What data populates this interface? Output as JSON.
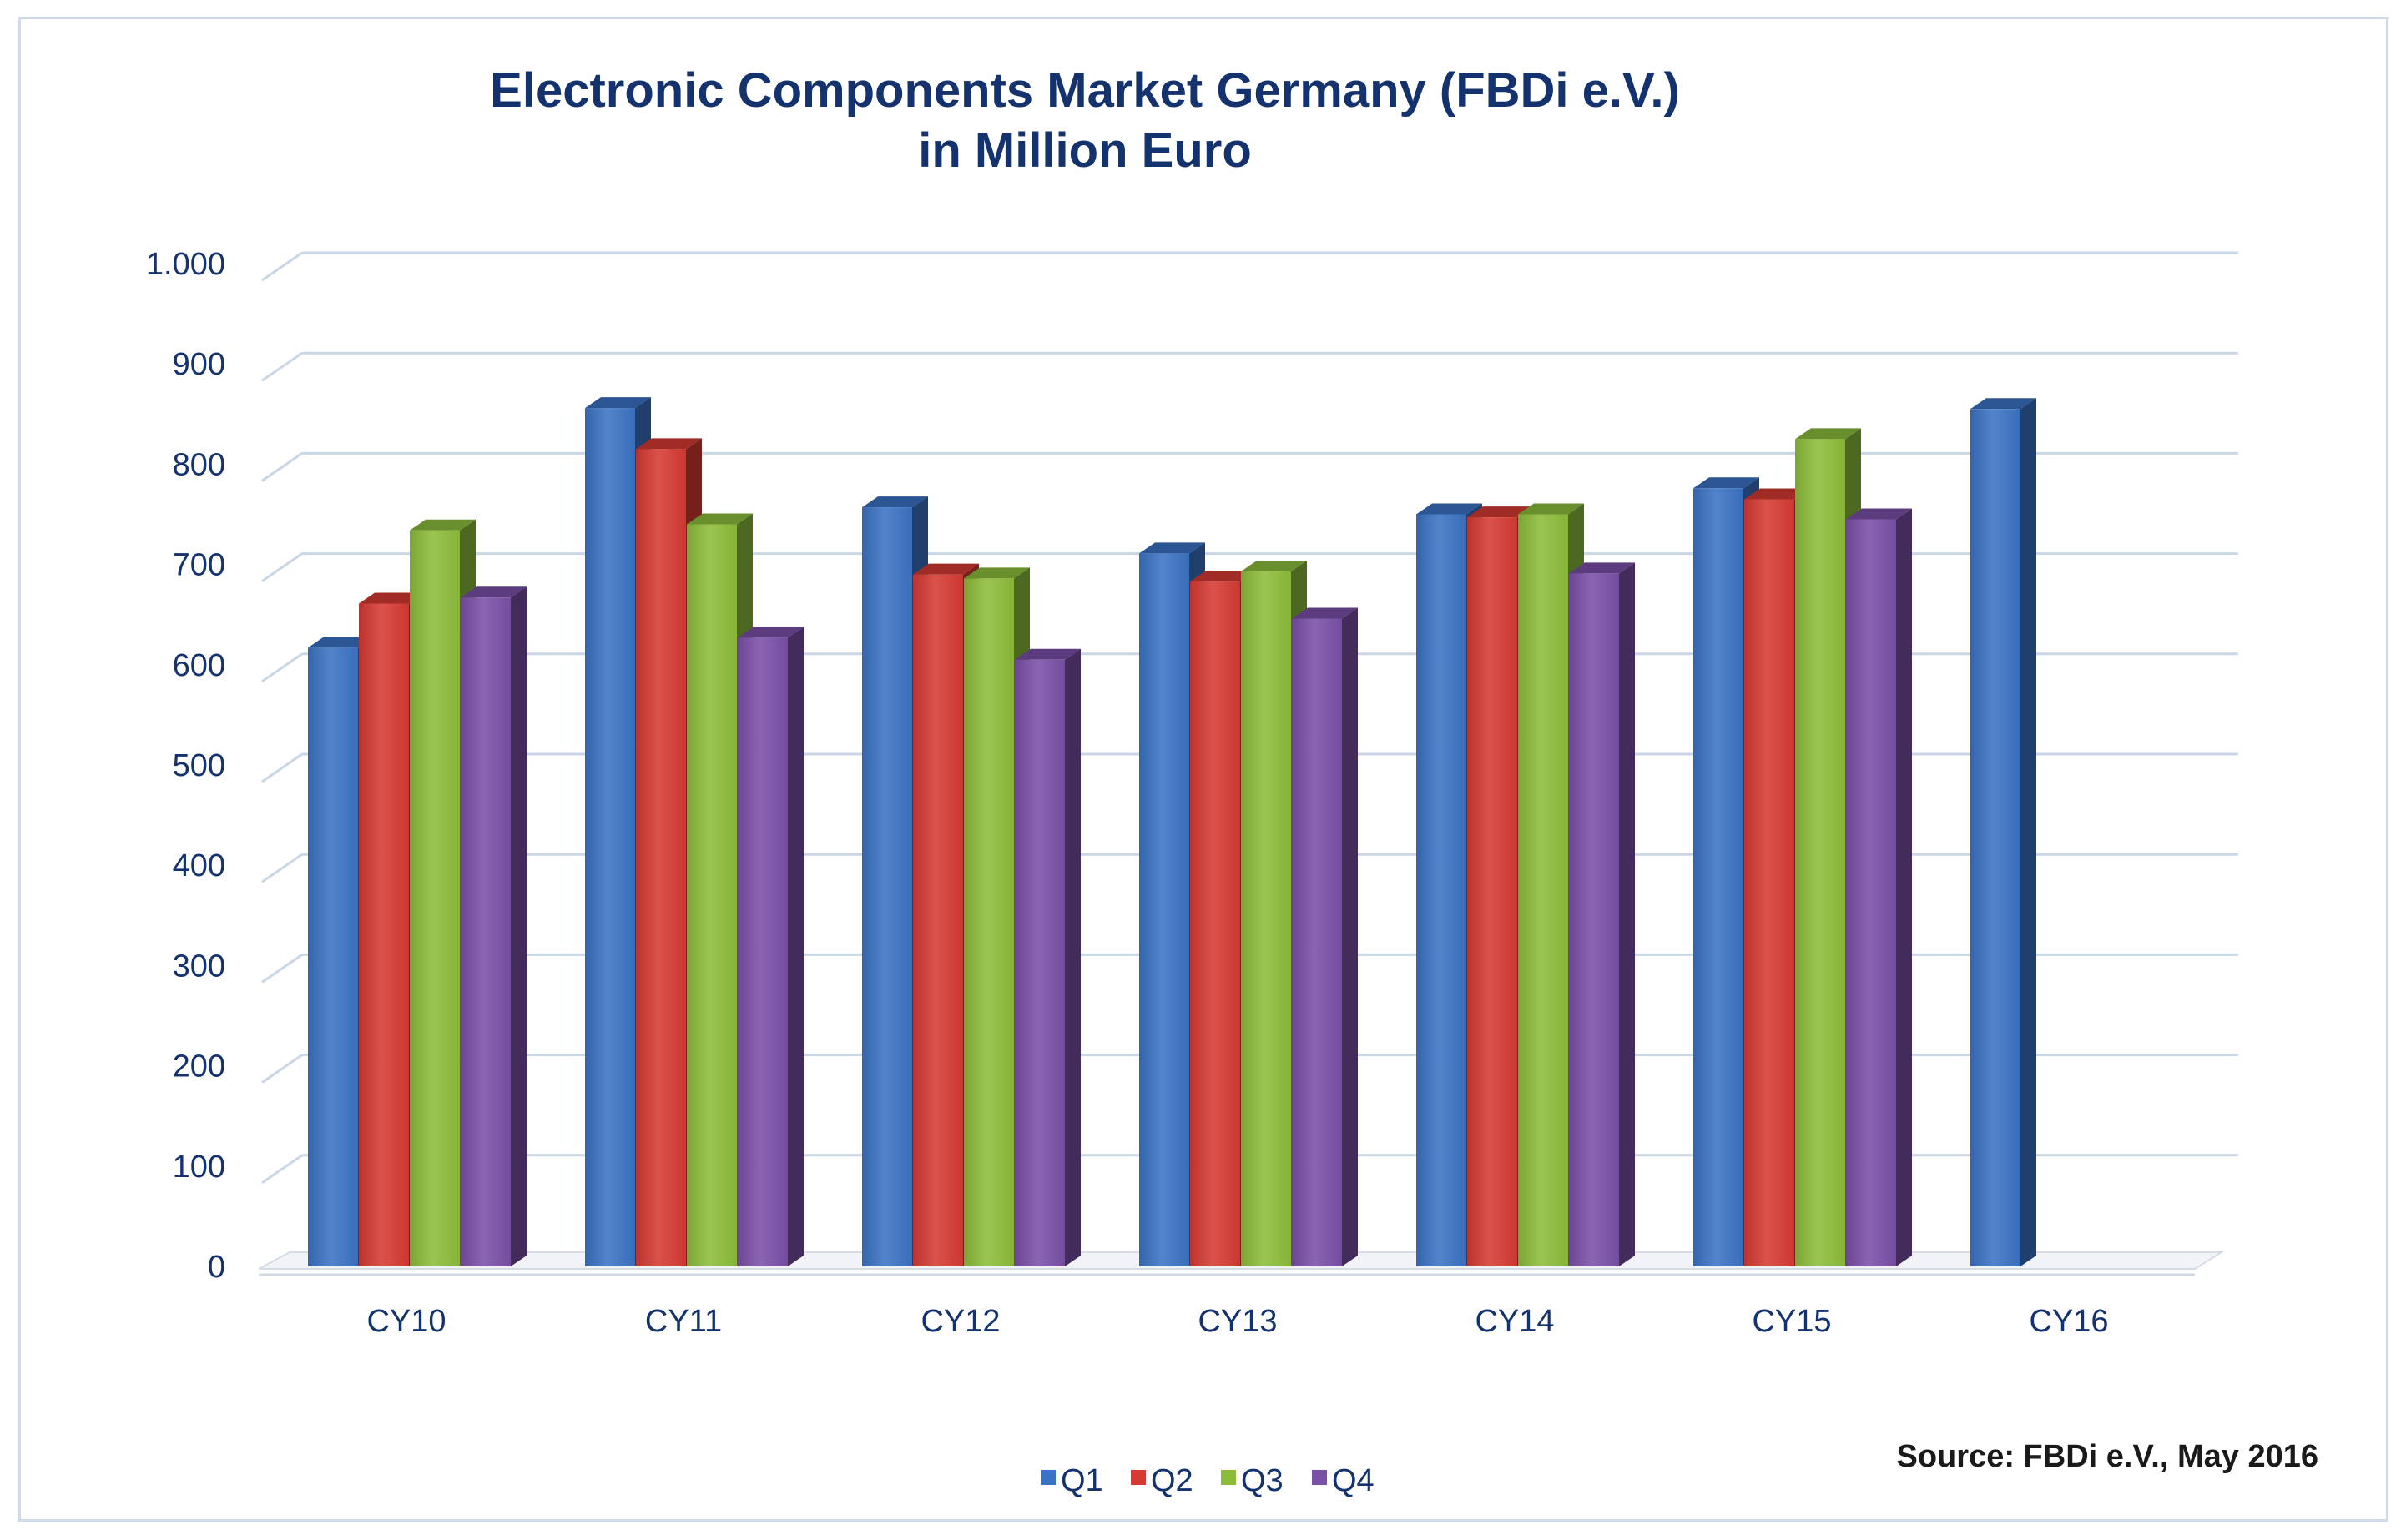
{
  "chart_data": {
    "type": "bar",
    "title_lines": [
      "Electronic Components Market Germany (FBDi e.V.)",
      "in Million Euro"
    ],
    "xlabel": "",
    "ylabel": "",
    "ylim": [
      0,
      1000
    ],
    "yticks": [
      {
        "value": 0,
        "label": "0"
      },
      {
        "value": 100,
        "label": "100"
      },
      {
        "value": 200,
        "label": "200"
      },
      {
        "value": 300,
        "label": "300"
      },
      {
        "value": 400,
        "label": "400"
      },
      {
        "value": 500,
        "label": "500"
      },
      {
        "value": 600,
        "label": "600"
      },
      {
        "value": 700,
        "label": "700"
      },
      {
        "value": 800,
        "label": "800"
      },
      {
        "value": 900,
        "label": "900"
      },
      {
        "value": 1000,
        "label": "1.000"
      }
    ],
    "grid": true,
    "legend_position": "bottom-center",
    "categories": [
      "CY10",
      "CY11",
      "CY12",
      "CY13",
      "CY14",
      "CY15",
      "CY16"
    ],
    "series": [
      {
        "name": "Q1",
        "color": "#3b73c4",
        "values": [
          617,
          856,
          757,
          711,
          750,
          776,
          855
        ]
      },
      {
        "name": "Q2",
        "color": "#d63a33",
        "values": [
          661,
          815,
          690,
          683,
          747,
          765,
          null
        ]
      },
      {
        "name": "Q3",
        "color": "#8cbd3a",
        "values": [
          734,
          740,
          686,
          693,
          750,
          825,
          null
        ]
      },
      {
        "name": "Q4",
        "color": "#7a50a8",
        "values": [
          667,
          627,
          605,
          646,
          691,
          745,
          null
        ]
      }
    ],
    "source": "Source: FBDi e.V., May 2016"
  },
  "colors": {
    "title": "#14326e",
    "tick_label": "#14326e",
    "gridline": "#c9d6e6",
    "source_text": "#1a1a1a"
  }
}
